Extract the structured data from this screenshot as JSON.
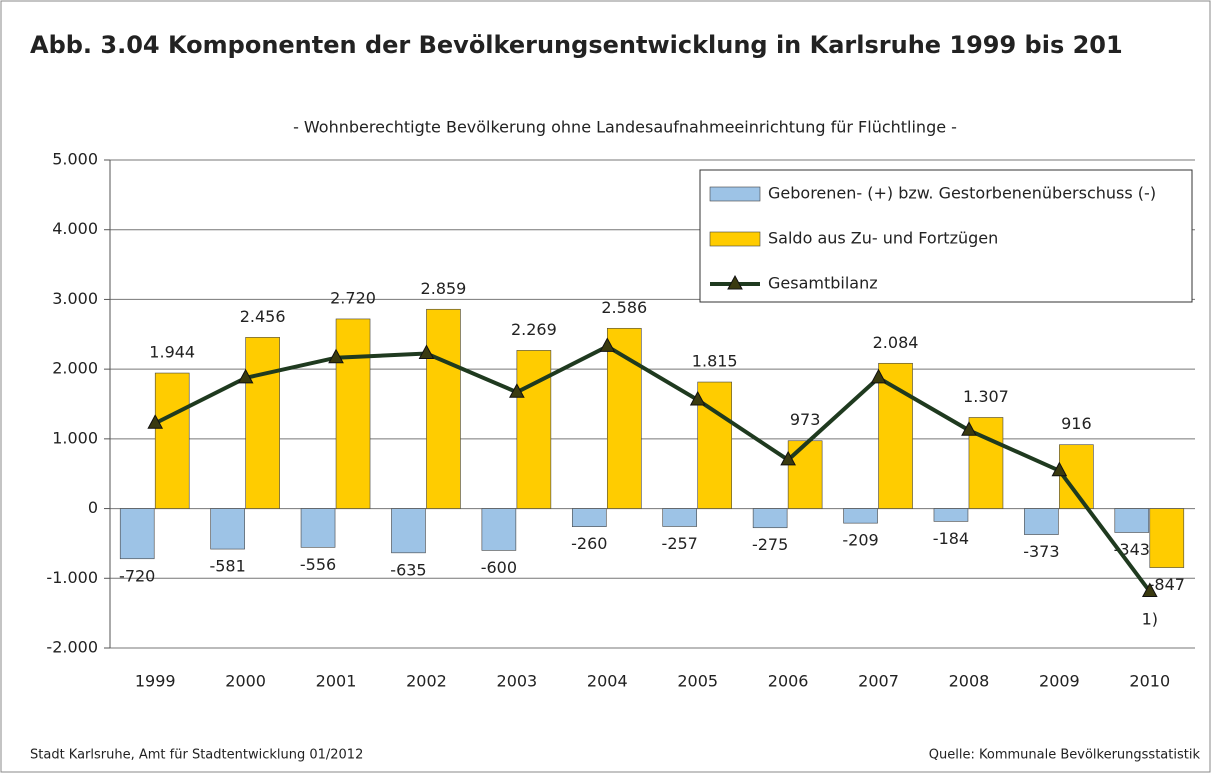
{
  "chart_data": {
    "type": "bar",
    "title": "Abb. 3.04 Komponenten der Bevölkerungsentwicklung in Karlsruhe 1999 bis 201",
    "subtitle": "- Wohnberechtigte Bevölkerung ohne Landesaufnahmeeinrichtung für Flüchtlinge -",
    "categories": [
      "1999",
      "2000",
      "2001",
      "2002",
      "2003",
      "2004",
      "2005",
      "2006",
      "2007",
      "2008",
      "2009",
      "2010"
    ],
    "series": [
      {
        "name": "Geborenen- (+) bzw. Gestorbenenüberschuss (-)",
        "color": "#9dc3e6",
        "type": "bar",
        "values": [
          -720,
          -581,
          -556,
          -635,
          -600,
          -260,
          -257,
          -275,
          -209,
          -184,
          -373,
          -343
        ],
        "value_labels": [
          "-720",
          "-581",
          "-556",
          "-635",
          "-600",
          "-260",
          "-257",
          "-275",
          "-209",
          "-184",
          "-373",
          "-343"
        ]
      },
      {
        "name": "Saldo aus Zu- und Fortzügen",
        "color": "#ffcc00",
        "type": "bar",
        "values": [
          1944,
          2456,
          2720,
          2859,
          2269,
          2586,
          1815,
          973,
          2084,
          1307,
          916,
          -847
        ],
        "value_labels": [
          "1.944",
          "2.456",
          "2.720",
          "2.859",
          "2.269",
          "2.586",
          "1.815",
          "973",
          "2.084",
          "1.307",
          "916",
          "-847"
        ]
      },
      {
        "name": "Gesamtbilanz",
        "color": "#1f3a1f",
        "type": "line",
        "values": [
          1224,
          1875,
          2164,
          2224,
          1669,
          2326,
          1558,
          698,
          1875,
          1123,
          543,
          -1190
        ]
      }
    ],
    "ylim": [
      -2000,
      5000
    ],
    "yticks": [
      {
        "value": -2000,
        "label": "-2.000"
      },
      {
        "value": -1000,
        "label": "-1.000"
      },
      0,
      {
        "value": 1000,
        "label": "1.000"
      },
      {
        "value": 2000,
        "label": "2.000"
      },
      {
        "value": 3000,
        "label": "3.000"
      },
      {
        "value": 4000,
        "label": "4.000"
      },
      {
        "value": 5000,
        "label": "5.000"
      }
    ],
    "grid": true,
    "legend": "upper right",
    "annotations": [
      "1)"
    ],
    "footer_left": "Stadt Karlsruhe, Amt für Stadtentwicklung 01/2012",
    "footer_right": "Quelle: Kommunale Bevölkerungsstatistik"
  }
}
